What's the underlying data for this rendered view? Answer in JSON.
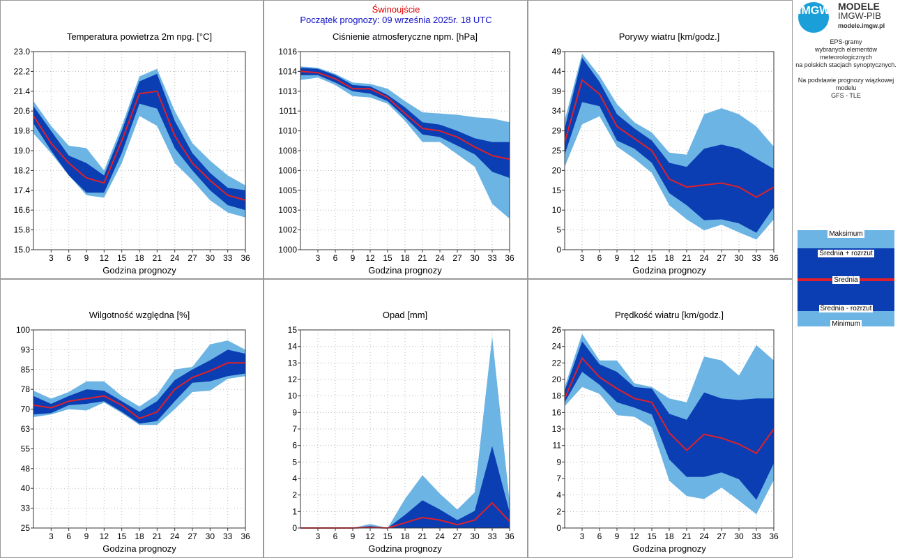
{
  "header": {
    "station": "Świnoujście",
    "forecast_start": "Początek prognozy: 09 września 2025r. 18 UTC"
  },
  "logo": {
    "mark": "IMGW",
    "title": "MODELE",
    "subtitle": "IMGW-PIB",
    "url": "modele.imgw.pl"
  },
  "info_lines": [
    "EPS-gramy",
    "wybranych elementów meteorologicznych",
    "na polskich stacjach  synoptycznych.",
    "",
    "Na podstawie prognozy wiązkowej modelu",
    "GFS - TLE"
  ],
  "legend": {
    "max": "Maksimum",
    "upper": "Średnia + rozrzut",
    "mean": "Średnia",
    "lower": "Średnia - rozrzut",
    "min": "Minimum"
  },
  "colors": {
    "light_band": "#6cb4e4",
    "dark_band": "#0b3eb2",
    "mean_line": "#e0202a"
  },
  "chart_data": [
    {
      "type": "area",
      "title": "Temperatura powietrza 2m npg. [°C]",
      "xlabel": "Godzina prognozy",
      "x": [
        0,
        3,
        6,
        9,
        12,
        15,
        18,
        21,
        24,
        27,
        30,
        33,
        36
      ],
      "xticks": [
        "3",
        "6",
        "9",
        "12",
        "15",
        "18",
        "21",
        "24",
        "27",
        "30",
        "33",
        "36"
      ],
      "ylim": [
        15.0,
        23.0
      ],
      "yticks": [
        "15.0",
        "15.8",
        "16.6",
        "17.4",
        "18.2",
        "19.0",
        "19.8",
        "20.6",
        "21.4",
        "22.2",
        "23.0"
      ],
      "series": [
        {
          "name": "Maksimum",
          "values": [
            21.0,
            20.0,
            19.2,
            19.1,
            18.2,
            20.0,
            22.0,
            22.3,
            20.6,
            19.3,
            18.6,
            18.0,
            17.6
          ]
        },
        {
          "name": "Średnia + rozrzut",
          "values": [
            20.8,
            19.8,
            18.8,
            18.5,
            18.0,
            19.8,
            21.8,
            22.1,
            20.2,
            18.9,
            18.1,
            17.5,
            17.4
          ]
        },
        {
          "name": "Średnia",
          "values": [
            20.4,
            19.3,
            18.5,
            17.9,
            17.7,
            19.4,
            21.3,
            21.4,
            19.6,
            18.5,
            17.8,
            17.2,
            17.0
          ]
        },
        {
          "name": "Średnia - rozrzut",
          "values": [
            20.1,
            19.0,
            18.0,
            17.3,
            17.3,
            18.9,
            20.9,
            20.7,
            19.1,
            18.2,
            17.4,
            16.8,
            16.6
          ]
        },
        {
          "name": "Minimum",
          "values": [
            19.7,
            18.9,
            18.0,
            17.2,
            17.1,
            18.5,
            20.4,
            20.0,
            18.5,
            17.8,
            17.0,
            16.5,
            16.3
          ]
        }
      ]
    },
    {
      "type": "area",
      "title": "Ciśnienie atmosferyczne npm. [hPa]",
      "xlabel": "Godzina prognozy",
      "x": [
        0,
        3,
        6,
        9,
        12,
        15,
        18,
        21,
        24,
        27,
        30,
        33,
        36
      ],
      "xticks": [
        "3",
        "6",
        "9",
        "12",
        "15",
        "18",
        "21",
        "24",
        "27",
        "30",
        "33",
        "36"
      ],
      "ylim": [
        1000,
        1016
      ],
      "yticks": [
        "1000",
        "1002",
        "1003",
        "1005",
        "1006",
        "1008",
        "1010",
        "1011",
        "1013",
        "1014",
        "1016"
      ],
      "series": [
        {
          "name": "Maksimum",
          "values": [
            1014.8,
            1014.7,
            1014.2,
            1013.5,
            1013.4,
            1013.0,
            1012.0,
            1011.1,
            1011.0,
            1010.9,
            1010.7,
            1010.6,
            1010.3
          ]
        },
        {
          "name": "Średnia + rozrzut",
          "values": [
            1014.7,
            1014.6,
            1014.1,
            1013.3,
            1013.2,
            1012.5,
            1011.5,
            1010.3,
            1010.1,
            1009.6,
            1009.0,
            1008.7,
            1008.7
          ]
        },
        {
          "name": "Średnia",
          "values": [
            1014.4,
            1014.3,
            1013.8,
            1013.0,
            1013.0,
            1012.3,
            1011.0,
            1009.8,
            1009.6,
            1009.1,
            1008.3,
            1007.6,
            1007.3
          ]
        },
        {
          "name": "Średnia - rozrzut",
          "values": [
            1014.1,
            1014.1,
            1013.5,
            1012.8,
            1012.6,
            1012.0,
            1010.7,
            1009.3,
            1009.1,
            1008.4,
            1007.7,
            1006.3,
            1005.8
          ]
        },
        {
          "name": "Minimum",
          "values": [
            1013.7,
            1013.9,
            1013.3,
            1012.4,
            1012.3,
            1011.8,
            1010.4,
            1008.7,
            1008.7,
            1007.7,
            1006.7,
            1003.7,
            1002.5
          ]
        }
      ]
    },
    {
      "type": "area",
      "title": "Porywy wiatru [km/godz.]",
      "xlabel": "Godzina prognozy",
      "x": [
        0,
        3,
        6,
        9,
        12,
        15,
        18,
        21,
        24,
        27,
        30,
        33,
        36
      ],
      "xticks": [
        "3",
        "6",
        "9",
        "12",
        "15",
        "18",
        "21",
        "24",
        "27",
        "30",
        "33",
        "36"
      ],
      "ylim": [
        0,
        49
      ],
      "yticks": [
        "0",
        "5",
        "10",
        "15",
        "20",
        "25",
        "29",
        "34",
        "39",
        "44",
        "49"
      ],
      "series": [
        {
          "name": "Maksimum",
          "values": [
            32,
            48.5,
            43,
            36,
            31.5,
            29,
            24,
            23.5,
            33.5,
            35,
            33.5,
            30.5,
            25.5
          ]
        },
        {
          "name": "Średnia + rozrzut",
          "values": [
            30,
            47.5,
            41.5,
            33.5,
            30,
            27,
            21.5,
            20.5,
            25,
            26,
            25,
            22.5,
            20
          ]
        },
        {
          "name": "Średnia",
          "values": [
            26.5,
            42,
            38.5,
            30.5,
            27.5,
            24.5,
            17.5,
            15.5,
            16,
            16.5,
            15.5,
            13,
            15.5
          ]
        },
        {
          "name": "Średnia - rozrzut",
          "values": [
            23.5,
            36.5,
            35.5,
            27,
            25,
            21.5,
            14,
            11,
            7.3,
            7.5,
            6.5,
            4.2,
            10.5
          ]
        },
        {
          "name": "Minimum",
          "values": [
            20.5,
            31,
            33,
            25.5,
            22.5,
            19,
            11,
            7.5,
            4.8,
            6.2,
            4.3,
            2.5,
            7.5
          ]
        }
      ]
    },
    {
      "type": "area",
      "title": "Wilgotność względna [%]",
      "xlabel": "Godzina prognozy",
      "x": [
        0,
        3,
        6,
        9,
        12,
        15,
        18,
        21,
        24,
        27,
        30,
        33,
        36
      ],
      "xticks": [
        "3",
        "6",
        "9",
        "12",
        "15",
        "18",
        "21",
        "24",
        "27",
        "30",
        "33",
        "36"
      ],
      "ylim": [
        25,
        100
      ],
      "yticks": [
        "25",
        "33",
        "40",
        "48",
        "55",
        "63",
        "70",
        "78",
        "85",
        "93",
        "100"
      ],
      "series": [
        {
          "name": "Maksimum",
          "values": [
            77,
            74,
            76.5,
            80.5,
            80.5,
            75,
            71,
            75.5,
            85,
            86,
            94.5,
            96,
            92.5
          ]
        },
        {
          "name": "Średnia + rozrzut",
          "values": [
            75,
            72,
            75,
            77.5,
            77,
            73,
            69,
            73,
            81,
            85,
            88.5,
            92.5,
            91
          ]
        },
        {
          "name": "Średnia",
          "values": [
            71.5,
            70.5,
            73,
            74,
            75,
            71.5,
            66.5,
            69,
            77.5,
            82,
            84.5,
            87.5,
            87.5
          ]
        },
        {
          "name": "Średnia - rozrzut",
          "values": [
            68,
            68.5,
            71.5,
            72,
            73,
            69,
            64.5,
            65.5,
            73,
            80,
            80.5,
            82.5,
            83.5
          ]
        },
        {
          "name": "Minimum",
          "values": [
            67,
            68,
            70,
            69.5,
            72.5,
            68.5,
            64,
            64,
            70,
            76.5,
            77,
            81.5,
            82.5
          ]
        }
      ]
    },
    {
      "type": "area",
      "title": "Opad [mm]",
      "xlabel": "Godzina prognozy",
      "x": [
        0,
        3,
        6,
        9,
        12,
        15,
        18,
        21,
        24,
        27,
        30,
        33,
        36
      ],
      "xticks": [
        "3",
        "6",
        "9",
        "12",
        "15",
        "18",
        "21",
        "24",
        "27",
        "30",
        "33",
        "36"
      ],
      "ylim": [
        0,
        15
      ],
      "yticks": [
        "0",
        "1",
        "2",
        "4",
        "5",
        "6",
        "7",
        "9",
        "10",
        "12",
        "13",
        "14",
        "15"
      ],
      "series": [
        {
          "name": "Maksimum",
          "values": [
            0,
            0,
            0,
            0,
            0.3,
            0,
            2.2,
            4.0,
            2.6,
            1.4,
            2.7,
            14.5,
            2.0
          ]
        },
        {
          "name": "Średnia + rozrzut",
          "values": [
            0,
            0,
            0,
            0,
            0.15,
            0,
            1.0,
            2.1,
            1.4,
            0.6,
            1.3,
            6.2,
            1.2
          ]
        },
        {
          "name": "Średnia",
          "values": [
            0,
            0,
            0,
            0,
            0.05,
            0,
            0.4,
            0.8,
            0.6,
            0.25,
            0.6,
            1.9,
            0.5
          ]
        },
        {
          "name": "Średnia - rozrzut",
          "values": [
            0,
            0,
            0,
            0,
            0,
            0,
            0,
            0,
            0,
            0,
            0,
            0,
            0
          ]
        },
        {
          "name": "Minimum",
          "values": [
            0,
            0,
            0,
            0,
            0,
            0,
            0,
            0,
            0,
            0,
            0,
            0,
            0
          ]
        }
      ]
    },
    {
      "type": "area",
      "title": "Prędkość wiatru [km/godz.]",
      "xlabel": "Godzina prognozy",
      "x": [
        0,
        3,
        6,
        9,
        12,
        15,
        18,
        21,
        24,
        27,
        30,
        33,
        36
      ],
      "xticks": [
        "3",
        "6",
        "9",
        "12",
        "15",
        "18",
        "21",
        "24",
        "27",
        "30",
        "33",
        "36"
      ],
      "ylim": [
        0,
        26
      ],
      "yticks": [
        "0",
        "2",
        "4",
        "7",
        "9",
        "11",
        "13",
        "16",
        "18",
        "20",
        "22",
        "24",
        "26"
      ],
      "series": [
        {
          "name": "Maksimum",
          "values": [
            18.5,
            25.5,
            22,
            22,
            19,
            18.5,
            17,
            16.5,
            22.5,
            22,
            20,
            24,
            22
          ]
        },
        {
          "name": "Średnia + rozrzut",
          "values": [
            18,
            24.5,
            21.5,
            20.5,
            18.5,
            18.3,
            15,
            14.2,
            17.8,
            17,
            16.8,
            17,
            17
          ]
        },
        {
          "name": "Średnia",
          "values": [
            17,
            22.3,
            19.8,
            18.3,
            17,
            16.5,
            12.5,
            10.2,
            12.3,
            11.8,
            11,
            9.8,
            13
          ]
        },
        {
          "name": "Średnia - rozrzut",
          "values": [
            16.5,
            20.5,
            18.8,
            16.5,
            15.8,
            14.9,
            9,
            6.7,
            6.7,
            7.3,
            6.4,
            3.7,
            8.5
          ]
        },
        {
          "name": "Minimum",
          "values": [
            16,
            18.5,
            17.6,
            14.8,
            14.6,
            13.2,
            6.2,
            4.2,
            3.8,
            5.3,
            3.6,
            1.8,
            6.3
          ]
        }
      ]
    }
  ]
}
